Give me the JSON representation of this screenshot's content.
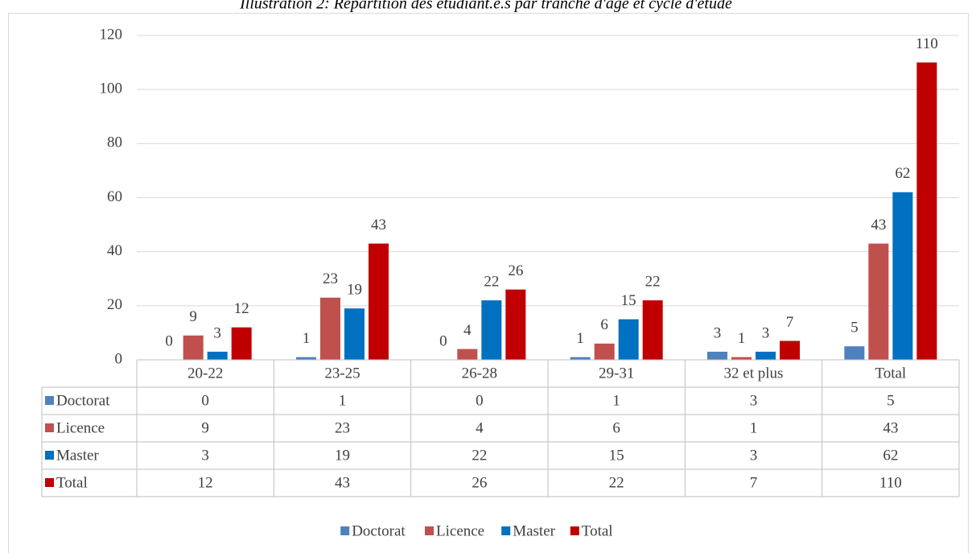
{
  "chart_data": {
    "type": "bar",
    "title": "Illustration 2: Répartition des étudiant.e.s par tranche d'âge et cycle d'étude",
    "categories": [
      "20-22",
      "23-25",
      "26-28",
      "29-31",
      "32 et plus",
      "Total"
    ],
    "series": [
      {
        "name": "Doctorat",
        "color": "#4f81bd",
        "values": [
          0,
          1,
          0,
          1,
          3,
          5
        ]
      },
      {
        "name": "Licence",
        "color": "#c0504d",
        "values": [
          9,
          23,
          4,
          6,
          1,
          43
        ]
      },
      {
        "name": "Master",
        "color": "#0070c0",
        "values": [
          3,
          19,
          22,
          15,
          3,
          62
        ]
      },
      {
        "name": "Total",
        "color": "#c00000",
        "values": [
          12,
          43,
          26,
          22,
          7,
          110
        ]
      }
    ],
    "ylim": [
      0,
      120
    ],
    "yticks": [
      0,
      20,
      40,
      60,
      80,
      100,
      120
    ],
    "grid": true,
    "legend": "bottom",
    "data_table": true
  }
}
